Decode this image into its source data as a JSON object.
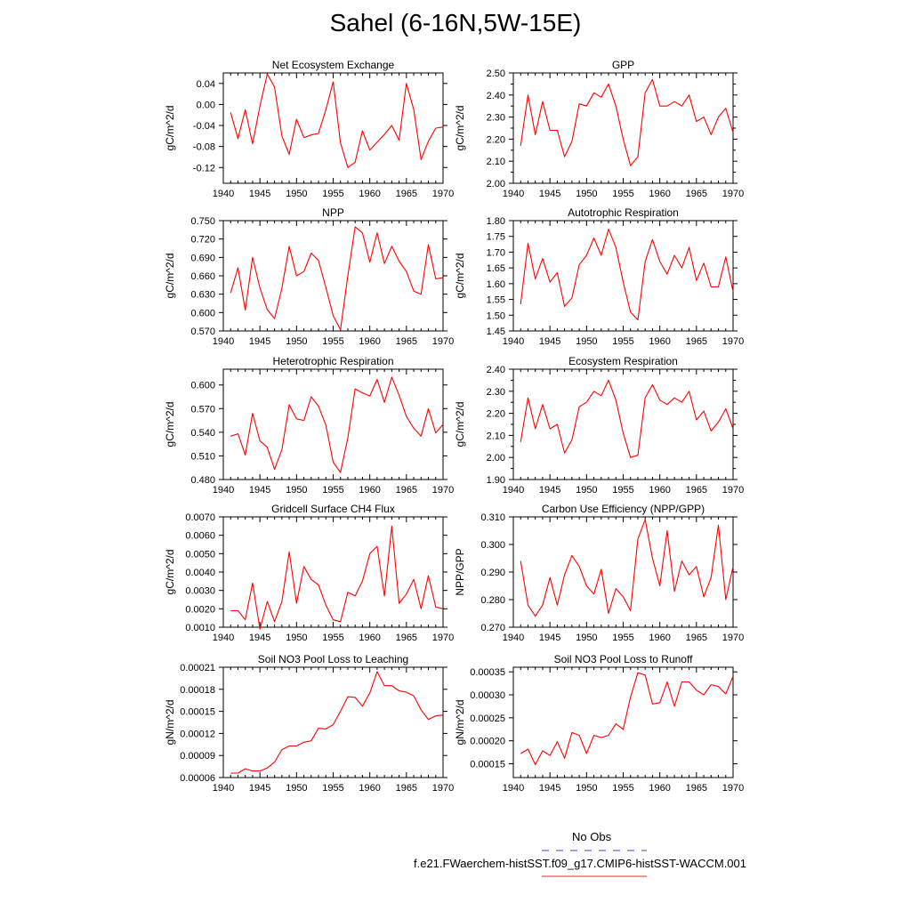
{
  "title": "Sahel (6-16N,5W-15E)",
  "legend": {
    "entries": [
      {
        "label": "No Obs",
        "color": "#4040c0",
        "style": "dashed"
      },
      {
        "label": "f.e21.FWaerchem-histSST.f09_g17.CMIP6-histSST-WACCM.001",
        "color": "#e03030",
        "style": "solid"
      }
    ]
  },
  "series_color": "#ff0000",
  "chart_data": [
    {
      "type": "line",
      "title": "Net Ecosystem Exchange",
      "ylabel": "gC/m^2/d",
      "xlim": [
        1940,
        1970
      ],
      "xticks": [
        "1940",
        "1945",
        "1950",
        "1955",
        "1960",
        "1965",
        "1970"
      ],
      "ylim": [
        -0.15,
        0.06
      ],
      "yticks": [
        "0.04",
        "0.00",
        "-0.04",
        "-0.08",
        "-0.12"
      ],
      "ytick_values": [
        0.04,
        0.0,
        -0.04,
        -0.08,
        -0.12
      ],
      "x": [
        1941,
        1942,
        1943,
        1944,
        1945,
        1946,
        1947,
        1948,
        1949,
        1950,
        1951,
        1952,
        1953,
        1954,
        1955,
        1956,
        1957,
        1958,
        1959,
        1960,
        1961,
        1962,
        1963,
        1964,
        1965,
        1966,
        1967,
        1968,
        1969,
        1970
      ],
      "values": [
        -0.015,
        -0.065,
        -0.01,
        -0.075,
        -0.003,
        0.058,
        0.033,
        -0.06,
        -0.095,
        -0.028,
        -0.063,
        -0.058,
        -0.055,
        -0.01,
        0.043,
        -0.073,
        -0.12,
        -0.11,
        -0.05,
        -0.087,
        -0.072,
        -0.057,
        -0.04,
        -0.068,
        0.04,
        -0.01,
        -0.105,
        -0.07,
        -0.045,
        -0.043
      ]
    },
    {
      "type": "line",
      "title": "GPP",
      "ylabel": "gC/m^2/d",
      "xlim": [
        1940,
        1970
      ],
      "xticks": [
        "1940",
        "1945",
        "1950",
        "1955",
        "1960",
        "1965",
        "1970"
      ],
      "ylim": [
        2.0,
        2.5
      ],
      "yticks": [
        "2.50",
        "2.40",
        "2.30",
        "2.20",
        "2.10",
        "2.00"
      ],
      "ytick_values": [
        2.5,
        2.4,
        2.3,
        2.2,
        2.1,
        2.0
      ],
      "minor_ytick_values": [
        2.45,
        2.35,
        2.25,
        2.15,
        2.05
      ],
      "x": [
        1941,
        1942,
        1943,
        1944,
        1945,
        1946,
        1947,
        1948,
        1949,
        1950,
        1951,
        1952,
        1953,
        1954,
        1955,
        1956,
        1957,
        1958,
        1959,
        1960,
        1961,
        1962,
        1963,
        1964,
        1965,
        1966,
        1967,
        1968,
        1969,
        1970
      ],
      "values": [
        2.17,
        2.4,
        2.22,
        2.37,
        2.24,
        2.24,
        2.12,
        2.19,
        2.36,
        2.35,
        2.41,
        2.39,
        2.45,
        2.35,
        2.2,
        2.08,
        2.12,
        2.41,
        2.47,
        2.35,
        2.35,
        2.37,
        2.35,
        2.4,
        2.28,
        2.3,
        2.22,
        2.3,
        2.34,
        2.23
      ]
    },
    {
      "type": "line",
      "title": "NPP",
      "ylabel": "gC/m^2/d",
      "xlim": [
        1940,
        1970
      ],
      "xticks": [
        "1940",
        "1945",
        "1950",
        "1955",
        "1960",
        "1965",
        "1970"
      ],
      "ylim": [
        0.57,
        0.75
      ],
      "yticks": [
        "0.750",
        "0.720",
        "0.690",
        "0.660",
        "0.630",
        "0.600",
        "0.570"
      ],
      "ytick_values": [
        0.75,
        0.72,
        0.69,
        0.66,
        0.63,
        0.6,
        0.57
      ],
      "x": [
        1941,
        1942,
        1943,
        1944,
        1945,
        1946,
        1947,
        1948,
        1949,
        1950,
        1951,
        1952,
        1953,
        1954,
        1955,
        1956,
        1957,
        1958,
        1959,
        1960,
        1961,
        1962,
        1963,
        1964,
        1965,
        1966,
        1967,
        1968,
        1969,
        1970
      ],
      "values": [
        0.632,
        0.673,
        0.604,
        0.69,
        0.64,
        0.605,
        0.59,
        0.64,
        0.708,
        0.66,
        0.667,
        0.697,
        0.685,
        0.641,
        0.595,
        0.572,
        0.66,
        0.74,
        0.73,
        0.682,
        0.73,
        0.68,
        0.708,
        0.684,
        0.667,
        0.635,
        0.63,
        0.711,
        0.655,
        0.657
      ]
    },
    {
      "type": "line",
      "title": "Autotrophic Respiration",
      "ylabel": "gC/m^2/d",
      "xlim": [
        1940,
        1970
      ],
      "xticks": [
        "1940",
        "1945",
        "1950",
        "1955",
        "1960",
        "1965",
        "1970"
      ],
      "ylim": [
        1.45,
        1.8
      ],
      "yticks": [
        "1.80",
        "1.75",
        "1.70",
        "1.65",
        "1.60",
        "1.55",
        "1.50",
        "1.45"
      ],
      "ytick_values": [
        1.8,
        1.75,
        1.7,
        1.65,
        1.6,
        1.55,
        1.5,
        1.45
      ],
      "x": [
        1941,
        1942,
        1943,
        1944,
        1945,
        1946,
        1947,
        1948,
        1949,
        1950,
        1951,
        1952,
        1953,
        1954,
        1955,
        1956,
        1957,
        1958,
        1959,
        1960,
        1961,
        1962,
        1963,
        1964,
        1965,
        1966,
        1967,
        1968,
        1969,
        1970
      ],
      "values": [
        1.535,
        1.728,
        1.615,
        1.68,
        1.605,
        1.635,
        1.528,
        1.555,
        1.66,
        1.69,
        1.745,
        1.69,
        1.773,
        1.715,
        1.605,
        1.51,
        1.485,
        1.67,
        1.74,
        1.67,
        1.63,
        1.69,
        1.65,
        1.715,
        1.61,
        1.665,
        1.59,
        1.59,
        1.685,
        1.575
      ]
    },
    {
      "type": "line",
      "title": "Heterotrophic Respiration",
      "ylabel": "gC/m^2/d",
      "xlim": [
        1940,
        1970
      ],
      "xticks": [
        "1940",
        "1945",
        "1950",
        "1955",
        "1960",
        "1965",
        "1970"
      ],
      "ylim": [
        0.48,
        0.62
      ],
      "yticks": [
        "0.600",
        "0.570",
        "0.540",
        "0.510",
        "0.480"
      ],
      "ytick_values": [
        0.6,
        0.57,
        0.54,
        0.51,
        0.48
      ],
      "x": [
        1941,
        1942,
        1943,
        1944,
        1945,
        1946,
        1947,
        1948,
        1949,
        1950,
        1951,
        1952,
        1953,
        1954,
        1955,
        1956,
        1957,
        1958,
        1959,
        1960,
        1961,
        1962,
        1963,
        1964,
        1965,
        1966,
        1967,
        1968,
        1969,
        1970
      ],
      "values": [
        0.535,
        0.538,
        0.511,
        0.564,
        0.529,
        0.521,
        0.493,
        0.518,
        0.575,
        0.557,
        0.555,
        0.585,
        0.573,
        0.549,
        0.502,
        0.489,
        0.533,
        0.595,
        0.59,
        0.586,
        0.607,
        0.578,
        0.61,
        0.587,
        0.56,
        0.545,
        0.535,
        0.57,
        0.539,
        0.55
      ]
    },
    {
      "type": "line",
      "title": "Ecosystem Respiration",
      "ylabel": "gC/m^2/d",
      "xlim": [
        1940,
        1970
      ],
      "xticks": [
        "1940",
        "1945",
        "1950",
        "1955",
        "1960",
        "1965",
        "1970"
      ],
      "ylim": [
        1.9,
        2.4
      ],
      "yticks": [
        "2.40",
        "2.30",
        "2.20",
        "2.10",
        "2.00",
        "1.90"
      ],
      "ytick_values": [
        2.4,
        2.3,
        2.2,
        2.1,
        2.0,
        1.9
      ],
      "minor_ytick_values": [
        2.35,
        2.25,
        2.15,
        2.05,
        1.95
      ],
      "x": [
        1941,
        1942,
        1943,
        1944,
        1945,
        1946,
        1947,
        1948,
        1949,
        1950,
        1951,
        1952,
        1953,
        1954,
        1955,
        1956,
        1957,
        1958,
        1959,
        1960,
        1961,
        1962,
        1963,
        1964,
        1965,
        1966,
        1967,
        1968,
        1969,
        1970
      ],
      "values": [
        2.07,
        2.27,
        2.13,
        2.24,
        2.13,
        2.15,
        2.02,
        2.08,
        2.23,
        2.25,
        2.3,
        2.28,
        2.35,
        2.26,
        2.11,
        2.0,
        2.01,
        2.27,
        2.33,
        2.26,
        2.24,
        2.27,
        2.25,
        2.3,
        2.17,
        2.21,
        2.12,
        2.16,
        2.22,
        2.13
      ]
    },
    {
      "type": "line",
      "title": "Gridcell Surface CH4 Flux",
      "ylabel": "gC/m^2/d",
      "xlim": [
        1940,
        1970
      ],
      "xticks": [
        "1940",
        "1945",
        "1950",
        "1955",
        "1960",
        "1965",
        "1970"
      ],
      "ylim": [
        0.001,
        0.007
      ],
      "yticks": [
        "0.0070",
        "0.0060",
        "0.0050",
        "0.0040",
        "0.0030",
        "0.0020",
        "0.0010"
      ],
      "ytick_values": [
        0.007,
        0.006,
        0.005,
        0.004,
        0.003,
        0.002,
        0.001
      ],
      "x": [
        1941,
        1942,
        1943,
        1944,
        1945,
        1946,
        1947,
        1948,
        1949,
        1950,
        1951,
        1952,
        1953,
        1954,
        1955,
        1956,
        1957,
        1958,
        1959,
        1960,
        1961,
        1962,
        1963,
        1964,
        1965,
        1966,
        1967,
        1968,
        1969,
        1970
      ],
      "values": [
        0.0019,
        0.0019,
        0.0014,
        0.0034,
        0.0009,
        0.0024,
        0.0013,
        0.0024,
        0.0051,
        0.0023,
        0.0043,
        0.0036,
        0.0033,
        0.0022,
        0.0014,
        0.0013,
        0.0029,
        0.0027,
        0.0035,
        0.005,
        0.0054,
        0.0027,
        0.0065,
        0.0023,
        0.0028,
        0.0036,
        0.002,
        0.0038,
        0.0021,
        0.002
      ]
    },
    {
      "type": "line",
      "title": "Carbon Use Efficiency (NPP/GPP)",
      "ylabel": "NPP/GPP",
      "xlim": [
        1940,
        1970
      ],
      "xticks": [
        "1940",
        "1945",
        "1950",
        "1955",
        "1960",
        "1965",
        "1970"
      ],
      "ylim": [
        0.27,
        0.31
      ],
      "yticks": [
        "0.310",
        "0.300",
        "0.290",
        "0.280",
        "0.270"
      ],
      "ytick_values": [
        0.31,
        0.3,
        0.29,
        0.28,
        0.27
      ],
      "x": [
        1941,
        1942,
        1943,
        1944,
        1945,
        1946,
        1947,
        1948,
        1949,
        1950,
        1951,
        1952,
        1953,
        1954,
        1955,
        1956,
        1957,
        1958,
        1959,
        1960,
        1961,
        1962,
        1963,
        1964,
        1965,
        1966,
        1967,
        1968,
        1969,
        1970
      ],
      "values": [
        0.294,
        0.278,
        0.274,
        0.278,
        0.288,
        0.278,
        0.289,
        0.296,
        0.292,
        0.285,
        0.282,
        0.291,
        0.275,
        0.284,
        0.281,
        0.276,
        0.302,
        0.309,
        0.295,
        0.285,
        0.305,
        0.283,
        0.294,
        0.289,
        0.292,
        0.281,
        0.288,
        0.307,
        0.28,
        0.292
      ]
    },
    {
      "type": "line",
      "title": "Soil NO3 Pool Loss to Leaching",
      "ylabel": "gN/m^2/d",
      "xlim": [
        1940,
        1970
      ],
      "xticks": [
        "1940",
        "1945",
        "1950",
        "1955",
        "1960",
        "1965",
        "1970"
      ],
      "ylim": [
        6e-05,
        0.00021
      ],
      "yticks": [
        "0.00021",
        "0.00018",
        "0.00015",
        "0.00012",
        "0.00009",
        "0.00006"
      ],
      "ytick_values": [
        0.00021,
        0.00018,
        0.00015,
        0.00012,
        9e-05,
        6e-05
      ],
      "x": [
        1941,
        1942,
        1943,
        1944,
        1945,
        1946,
        1947,
        1948,
        1949,
        1950,
        1951,
        1952,
        1953,
        1954,
        1955,
        1956,
        1957,
        1958,
        1959,
        1960,
        1961,
        1962,
        1963,
        1964,
        1965,
        1966,
        1967,
        1968,
        1969,
        1970
      ],
      "values": [
        6.6e-05,
        6.6e-05,
        7.2e-05,
        6.9e-05,
        6.9e-05,
        7.3e-05,
        8.1e-05,
        9.8e-05,
        0.000103,
        0.000103,
        0.000108,
        0.00011,
        0.000127,
        0.000126,
        0.000132,
        0.00015,
        0.00017,
        0.000169,
        0.000157,
        0.000175,
        0.000204,
        0.000185,
        0.000185,
        0.000178,
        0.000176,
        0.000171,
        0.000152,
        0.000139,
        0.000144,
        0.000145
      ]
    },
    {
      "type": "line",
      "title": "Soil NO3 Pool Loss to Runoff",
      "ylabel": "gN/m^2/d",
      "xlim": [
        1940,
        1970
      ],
      "xticks": [
        "1940",
        "1945",
        "1950",
        "1955",
        "1960",
        "1965",
        "1970"
      ],
      "ylim": [
        0.00012,
        0.00036
      ],
      "yticks": [
        "0.00035",
        "0.00030",
        "0.00025",
        "0.00020",
        "0.00015"
      ],
      "ytick_values": [
        0.00035,
        0.0003,
        0.00025,
        0.0002,
        0.00015
      ],
      "x": [
        1941,
        1942,
        1943,
        1944,
        1945,
        1946,
        1947,
        1948,
        1949,
        1950,
        1951,
        1952,
        1953,
        1954,
        1955,
        1956,
        1957,
        1958,
        1959,
        1960,
        1961,
        1962,
        1963,
        1964,
        1965,
        1966,
        1967,
        1968,
        1969,
        1970
      ],
      "values": [
        0.000172,
        0.000182,
        0.000148,
        0.000178,
        0.000168,
        0.000198,
        0.000162,
        0.000218,
        0.000212,
        0.000172,
        0.000212,
        0.000207,
        0.000212,
        0.000237,
        0.000225,
        0.000295,
        0.000348,
        0.000343,
        0.00028,
        0.000283,
        0.000328,
        0.000275,
        0.000328,
        0.000328,
        0.00031,
        0.0003,
        0.000322,
        0.000318,
        0.000302,
        0.00034
      ]
    }
  ]
}
